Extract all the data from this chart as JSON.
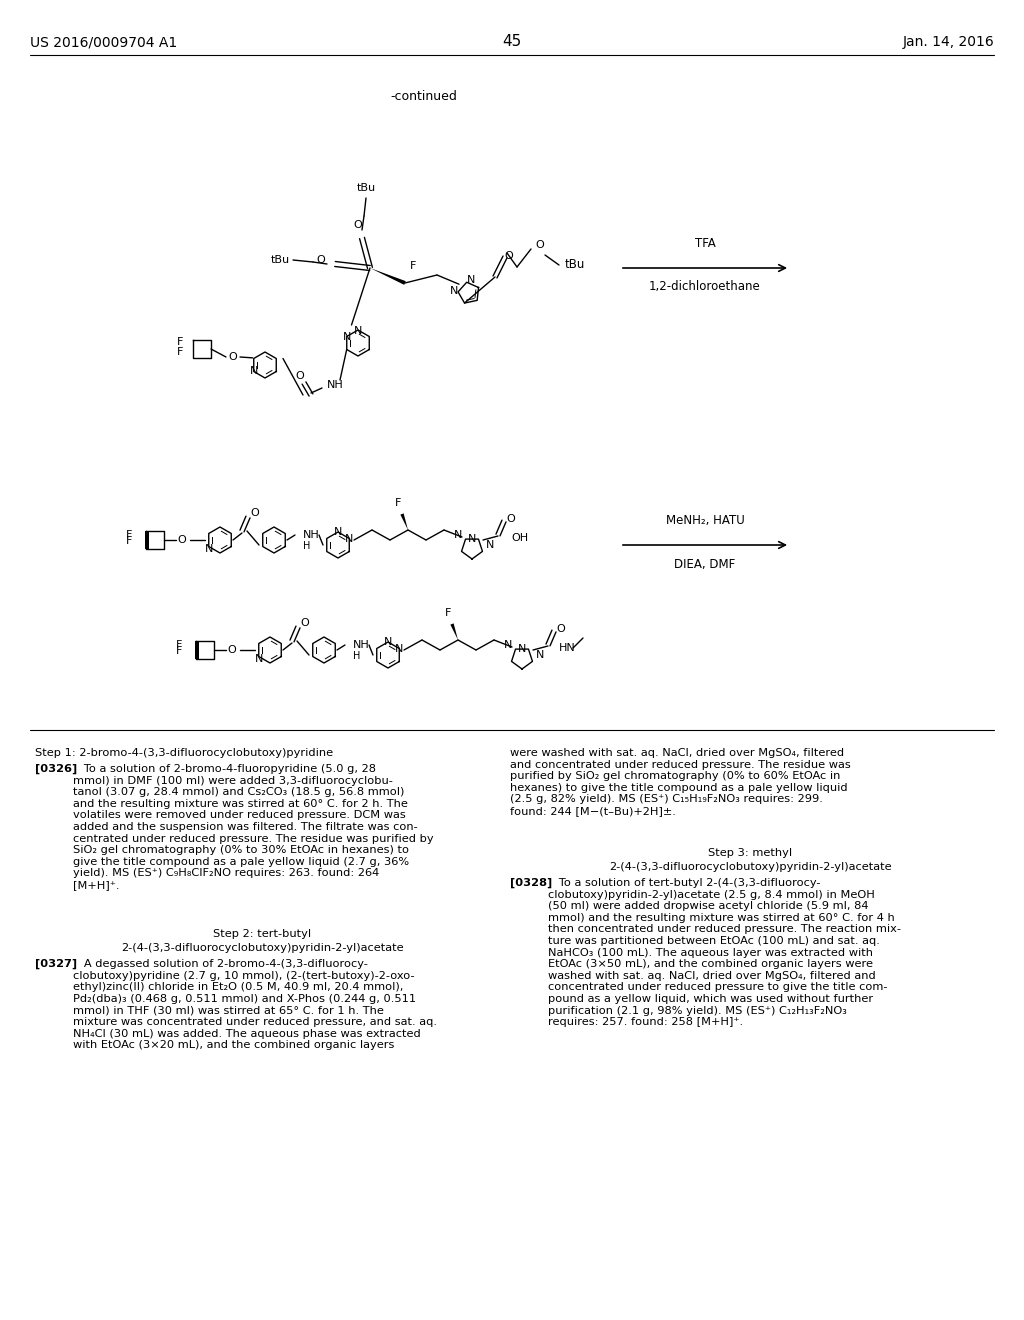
{
  "bg": "#ffffff",
  "header_left": "US 2016/0009704 A1",
  "header_center": "45",
  "header_right": "Jan. 14, 2016",
  "hfs": 10,
  "continued": "-continued",
  "arrow1_top": "TFA",
  "arrow1_bot": "1,2-dichloroethane",
  "arrow2_top": "MeNH₂, HATU",
  "arrow2_bot": "DIEA, DMF",
  "step1_title": "Step 1: 2-bromo-4-(3,3-difluorocyclobutoxy)pyridine",
  "p0326_bold": "[0326]",
  "p0326_text": "   To a solution of 2-bromo-4-fluoropyridine (5.0 g, 28\nmmol) in DMF (100 ml) were added 3,3-difluorocyclobu-\ntanol (3.07 g, 28.4 mmol) and Cs₂CO₃ (18.5 g, 56.8 mmol)\nand the resulting mixture was stirred at 60° C. for 2 h. The\nvolatiles were removed under reduced pressure. DCM was\nadded and the suspension was filtered. The filtrate was con-\ncentrated under reduced pressure. The residue was purified by\nSiO₂ gel chromatography (0% to 30% EtOAc in hexanes) to\ngive the title compound as a pale yellow liquid (2.7 g, 36%\nyield). MS (ES⁺) C₉H₈ClF₂NO requires: 263. found: 264\n[M+H]⁺.",
  "step2_title1": "Step 2: tert-butyl",
  "step2_title2": "2-(4-(3,3-difluorocyclobutoxy)pyridin-2-yl)acetate",
  "p0327_bold": "[0327]",
  "p0327_text": "   A degassed solution of 2-bromo-4-(3,3-difluorocy-\nclobutoxy)pyridine (2.7 g, 10 mmol), (2-(tert-butoxy)-2-oxo-\nethyl)zinc(II) chloride in Et₂O (0.5 M, 40.9 ml, 20.4 mmol),\nPd₂(dba)₃ (0.468 g, 0.511 mmol) and X-Phos (0.244 g, 0.511\nmmol) in THF (30 ml) was stirred at 65° C. for 1 h. The\nmixture was concentrated under reduced pressure, and sat. aq.\nNH₄Cl (30 mL) was added. The aqueous phase was extracted\nwith EtOAc (3×20 mL), and the combined organic layers",
  "right_top_text": "were washed with sat. aq. NaCl, dried over MgSO₄, filtered\nand concentrated under reduced pressure. The residue was\npurified by SiO₂ gel chromatography (0% to 60% EtOAc in\nhexanes) to give the title compound as a pale yellow liquid\n(2.5 g, 82% yield). MS (ES⁺) C₁₅H₁₉F₂NO₃ requires: 299.\nfound: 244 [M−(t–Bu)+2H]±.",
  "step3_title1": "Step 3: methyl",
  "step3_title2": "2-(4-(3,3-difluorocyclobutoxy)pyridin-2-yl)acetate",
  "p0328_bold": "[0328]",
  "p0328_text": "   To a solution of tert-butyl 2-(4-(3,3-difluorocy-\nclobutoxy)pyridin-2-yl)acetate (2.5 g, 8.4 mmol) in MeOH\n(50 ml) were added dropwise acetyl chloride (5.9 ml, 84\nmmol) and the resulting mixture was stirred at 60° C. for 4 h\nthen concentrated under reduced pressure. The reaction mix-\nture was partitioned between EtOAc (100 mL) and sat. aq.\nNaHCO₃ (100 mL). The aqueous layer was extracted with\nEtOAc (3×50 mL), and the combined organic layers were\nwashed with sat. aq. NaCl, dried over MgSO₄, filtered and\nconcentrated under reduced pressure to give the title com-\npound as a yellow liquid, which was used without further\npurification (2.1 g, 98% yield). MS (ES⁺) C₁₂H₁₃F₂NO₃\nrequires: 257. found: 258 [M+H]⁺."
}
